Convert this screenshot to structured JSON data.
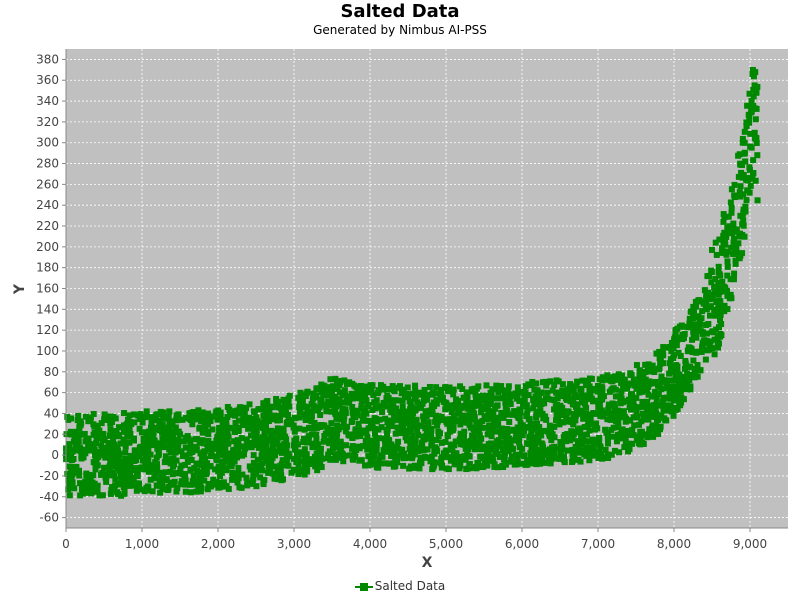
{
  "chart_data": {
    "type": "scatter",
    "title": "Salted Data",
    "subtitle": "Generated by Nimbus AI-PSS",
    "xlabel": "X",
    "ylabel": "Y",
    "xlim": [
      0,
      9500
    ],
    "ylim": [
      -70,
      390
    ],
    "x_ticks": [
      0,
      1000,
      2000,
      3000,
      4000,
      5000,
      6000,
      7000,
      8000,
      9000
    ],
    "x_tick_labels": [
      "0",
      "1,000",
      "2,000",
      "3,000",
      "4,000",
      "5,000",
      "6,000",
      "7,000",
      "8,000",
      "9,000"
    ],
    "y_ticks": [
      -60,
      -40,
      -20,
      0,
      20,
      40,
      60,
      80,
      100,
      120,
      140,
      160,
      180,
      200,
      220,
      240,
      260,
      280,
      300,
      320,
      340,
      360,
      380
    ],
    "grid": true,
    "background": "#c0c0c0",
    "legend_position": "bottom",
    "series": [
      {
        "name": "Salted Data",
        "color": "#008800",
        "marker": "square",
        "noise_band_width": 80,
        "trend": [
          [
            0,
            0
          ],
          [
            500,
            0
          ],
          [
            1000,
            2
          ],
          [
            1500,
            3
          ],
          [
            2000,
            5
          ],
          [
            2500,
            10
          ],
          [
            3000,
            18
          ],
          [
            3300,
            25
          ],
          [
            3500,
            35
          ],
          [
            3700,
            32
          ],
          [
            4000,
            28
          ],
          [
            4500,
            27
          ],
          [
            5000,
            26
          ],
          [
            5500,
            27
          ],
          [
            6000,
            30
          ],
          [
            6500,
            32
          ],
          [
            7000,
            35
          ],
          [
            7300,
            40
          ],
          [
            7600,
            50
          ],
          [
            7800,
            60
          ],
          [
            8000,
            78
          ],
          [
            8200,
            100
          ],
          [
            8400,
            125
          ],
          [
            8600,
            160
          ],
          [
            8800,
            220
          ],
          [
            8900,
            250
          ],
          [
            9000,
            300
          ],
          [
            9050,
            320
          ],
          [
            9100,
            300
          ]
        ]
      }
    ]
  }
}
